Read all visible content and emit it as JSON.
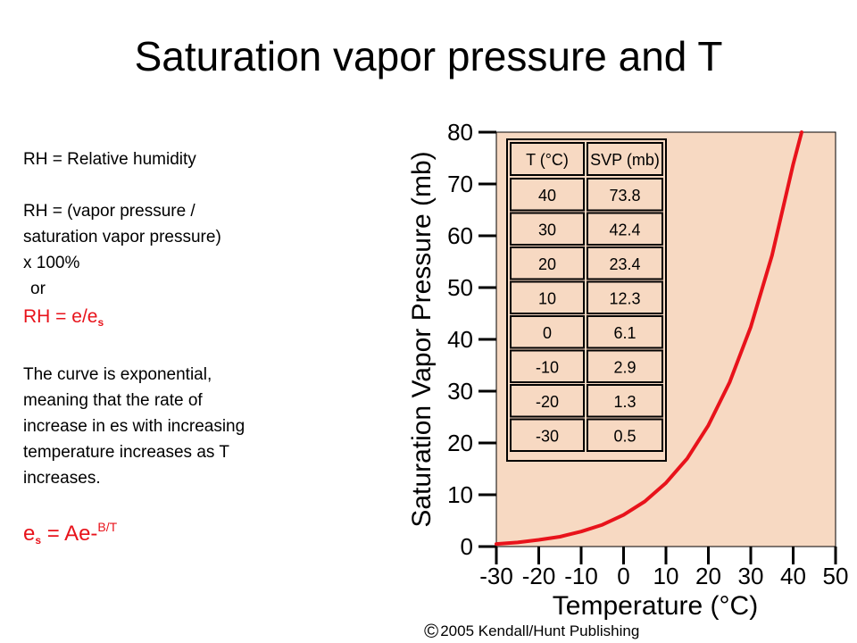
{
  "slide": {
    "title": "Saturation vapor pressure and T"
  },
  "notes": {
    "line1": "RH = Relative humidity",
    "line2": "RH = (vapor pressure /",
    "line3": "saturation vapor pressure)",
    "line4": "x 100%",
    "line5": "or",
    "rh_formula_main": "RH = e/e",
    "rh_formula_sub": "s",
    "para1": "The curve is exponential,",
    "para2": "meaning that the rate of",
    "para3": "increase in es with increasing",
    "para4": "temperature increases as T",
    "para5": "increases.",
    "es_formula_e": "e",
    "es_formula_sub": "s",
    "es_formula_rest": " = Ae-",
    "es_formula_sup": "B/T"
  },
  "chart_data": {
    "type": "line",
    "xlabel": "Temperature (°C)",
    "ylabel": "Saturation Vapor Pressure (mb)",
    "xlim": [
      -30,
      50
    ],
    "ylim": [
      0,
      80
    ],
    "x_ticks": [
      "-30",
      "-20",
      "-10",
      "0",
      "10",
      "20",
      "30",
      "40",
      "50"
    ],
    "y_ticks": [
      "0",
      "10",
      "20",
      "30",
      "40",
      "50",
      "60",
      "70",
      "80"
    ],
    "series": [
      {
        "x": [
          -30,
          -25,
          -20,
          -15,
          -10,
          -5,
          0,
          5,
          10,
          15,
          20,
          25,
          30,
          35,
          40,
          42
        ],
        "values": [
          0.5,
          0.8,
          1.3,
          1.9,
          2.9,
          4.2,
          6.1,
          8.7,
          12.3,
          17.0,
          23.4,
          31.7,
          42.4,
          56.2,
          73.8,
          80
        ],
        "color": "#e8131b"
      }
    ],
    "inset_table": {
      "headers": [
        "T (°C)",
        "SVP (mb)"
      ],
      "rows": [
        [
          "40",
          "73.8"
        ],
        [
          "30",
          "42.4"
        ],
        [
          "20",
          "23.4"
        ],
        [
          "10",
          "12.3"
        ],
        [
          "0",
          "6.1"
        ],
        [
          "-10",
          "2.9"
        ],
        [
          "-20",
          "1.3"
        ],
        [
          "-30",
          "0.5"
        ]
      ]
    },
    "plot_background": "#f7d9c2",
    "grid": false
  },
  "copyright": {
    "symbol": "©",
    "text": "2005 Kendall/Hunt Publishing"
  }
}
